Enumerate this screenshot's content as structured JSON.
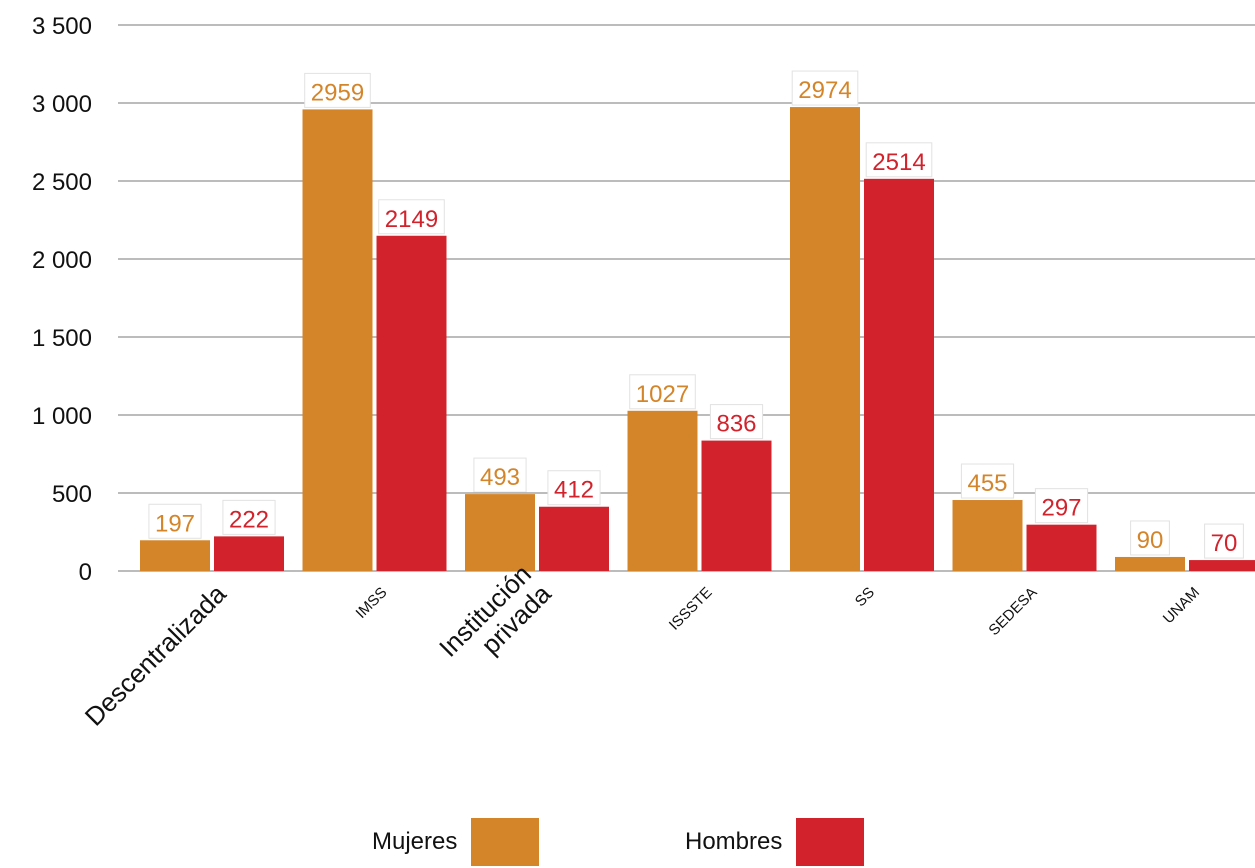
{
  "chart_data": {
    "type": "bar",
    "categories": [
      "Descentralizada",
      "IMSS",
      "Institución\nprivada",
      "ISSSTE",
      "SS",
      "SEDESA",
      "UNAM"
    ],
    "series": [
      {
        "name": "Mujeres",
        "values": [
          197,
          2959,
          493,
          1027,
          2974,
          455,
          90
        ],
        "color": "#D4852A",
        "label_color": "#D4852A"
      },
      {
        "name": "Hombres",
        "values": [
          222,
          2149,
          412,
          836,
          2514,
          297,
          70
        ],
        "color": "#D2232D",
        "label_color": "#D2232D"
      }
    ],
    "ylim": [
      0,
      3500
    ],
    "yticks": [
      0,
      500,
      1000,
      1500,
      2000,
      2500,
      3000,
      3500
    ],
    "ytick_labels": [
      "0",
      "500",
      "1 000",
      "1 500",
      "2 000",
      "2 500",
      "3 000",
      "3 500"
    ],
    "grid": true,
    "data_labels": true,
    "legend_position": "bottom-center",
    "title": "",
    "xlabel": "",
    "ylabel": ""
  },
  "legend": {
    "mujeres_label": "Mujeres",
    "hombres_label": "Hombres"
  }
}
